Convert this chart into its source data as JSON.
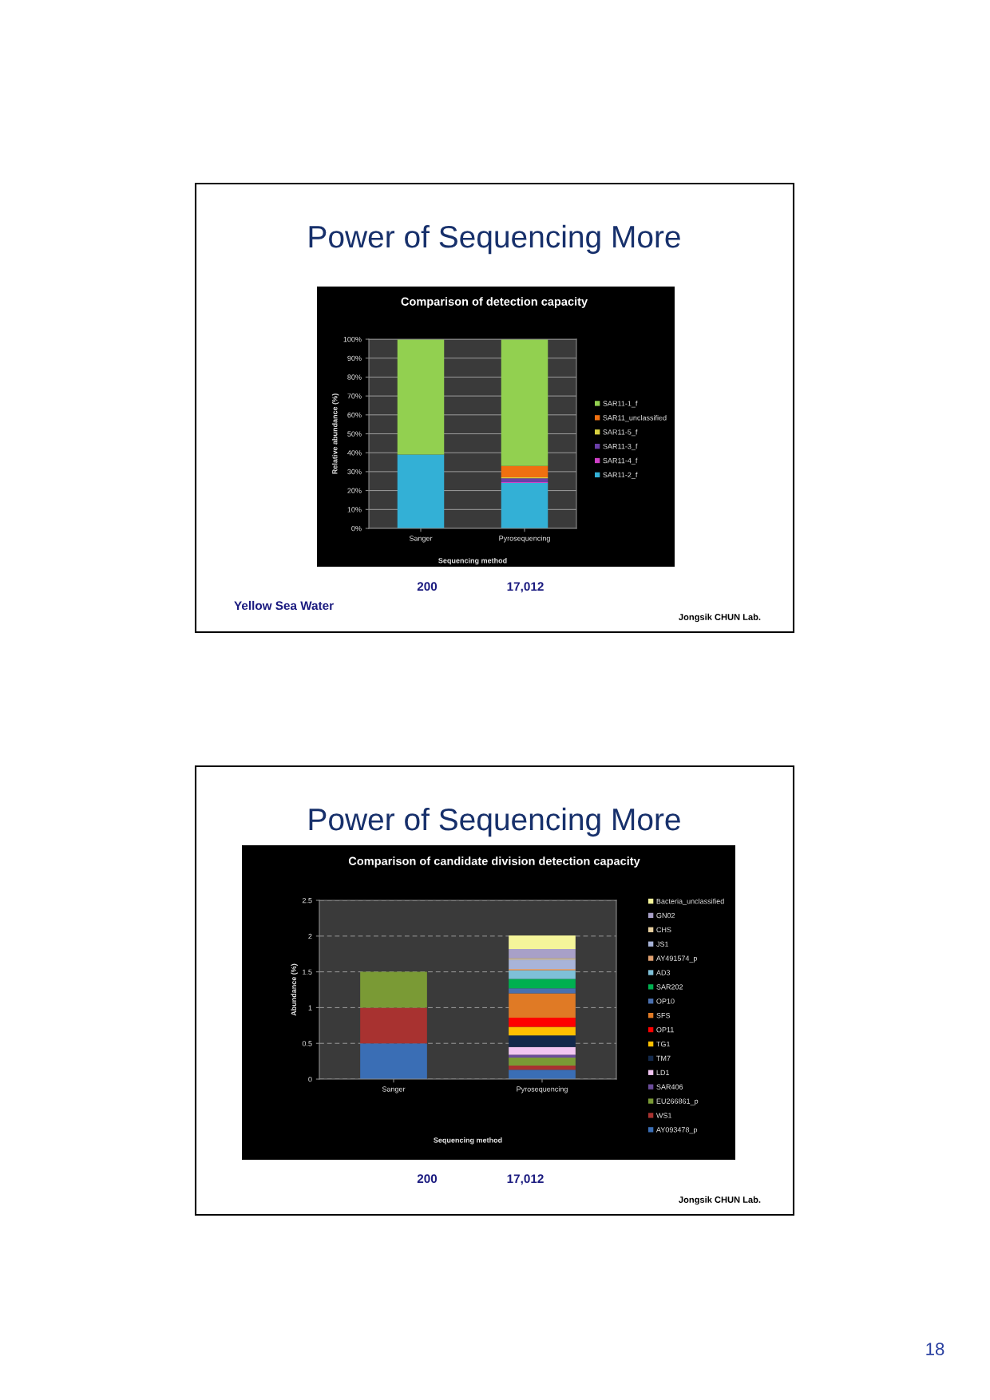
{
  "chart_data": [
    {
      "type": "bar",
      "title": "Comparison of detection capacity",
      "xlabel": "Sequencing method",
      "ylabel": "Relative abundance (%)",
      "categories": [
        "Sanger",
        "Pyrosequencing"
      ],
      "stacked": true,
      "series": [
        {
          "name": "SAR11-2_f",
          "color": "#33b0d6",
          "values": [
            39,
            24
          ]
        },
        {
          "name": "SAR11-4_f",
          "color": "#d040c8",
          "values": [
            null,
            0.5
          ]
        },
        {
          "name": "SAR11-3_f",
          "color": "#6a3fa8",
          "values": [
            null,
            2
          ]
        },
        {
          "name": "SAR11-5_f",
          "color": "#d8d040",
          "values": [
            null,
            0.5
          ]
        },
        {
          "name": "SAR11_unclassified",
          "color": "#f07010",
          "values": [
            null,
            6
          ]
        },
        {
          "name": "SAR11-1_f",
          "color": "#92d050",
          "values": [
            61,
            67
          ]
        }
      ],
      "ylim": [
        0,
        100
      ],
      "yticks": [
        {
          "value": 0,
          "label": "0%"
        },
        {
          "value": 10,
          "label": "10%"
        },
        {
          "value": 20,
          "label": "20%"
        },
        {
          "value": 30,
          "label": "30%"
        },
        {
          "value": 40,
          "label": "40%"
        },
        {
          "value": 50,
          "label": "50%"
        },
        {
          "value": 60,
          "label": "60%"
        },
        {
          "value": 70,
          "label": "70%"
        },
        {
          "value": 80,
          "label": "80%"
        },
        {
          "value": 90,
          "label": "90%"
        },
        {
          "value": 100,
          "label": "100%"
        }
      ],
      "grid": "y",
      "legend": "right",
      "annotations": [
        "Power of Sequencing More",
        "200",
        "17,012",
        "Yellow Sea Water",
        "Jongsik CHUN Lab."
      ]
    },
    {
      "type": "bar",
      "title": "Comparison of candidate division detection capacity",
      "xlabel": "Sequencing method",
      "ylabel": "Abundance (%)",
      "categories": [
        "Sanger",
        "Pyrosequencing"
      ],
      "stacked": true,
      "series": [
        {
          "name": "AY093478_p",
          "color": "#3a6eb5",
          "values": [
            0.5,
            0.13
          ]
        },
        {
          "name": "WS1",
          "color": "#a83230",
          "values": [
            0.5,
            0.06
          ]
        },
        {
          "name": "EU266861_p",
          "color": "#7a9a35",
          "values": [
            0.5,
            0.11
          ]
        },
        {
          "name": "SAR406",
          "color": "#6b4c9a",
          "values": [
            null,
            0.04
          ]
        },
        {
          "name": "LD1",
          "color": "#f2c6f2",
          "values": [
            null,
            0.11
          ]
        },
        {
          "name": "TM7",
          "color": "#13294b",
          "values": [
            null,
            0.16
          ]
        },
        {
          "name": "TG1",
          "color": "#ffc000",
          "values": [
            null,
            0.12
          ]
        },
        {
          "name": "OP11",
          "color": "#ff0000",
          "values": [
            null,
            0.13
          ]
        },
        {
          "name": "SFS",
          "color": "#e07a25",
          "values": [
            null,
            0.34
          ]
        },
        {
          "name": "OP10",
          "color": "#4a70b0",
          "values": [
            null,
            0.07
          ]
        },
        {
          "name": "SAR202",
          "color": "#00b050",
          "values": [
            null,
            0.13
          ]
        },
        {
          "name": "AD3",
          "color": "#7ec0d8",
          "values": [
            null,
            0.12
          ]
        },
        {
          "name": "AY491574_p",
          "color": "#e0a070",
          "values": [
            null,
            0.02
          ]
        },
        {
          "name": "JS1",
          "color": "#a8b4d8",
          "values": [
            null,
            0.13
          ]
        },
        {
          "name": "CHS",
          "color": "#e8d0a0",
          "values": [
            null,
            0.02
          ]
        },
        {
          "name": "GN02",
          "color": "#a8a0c8",
          "values": [
            null,
            0.13
          ]
        },
        {
          "name": "Bacteria_unclassified",
          "color": "#f5f59a",
          "values": [
            null,
            0.19
          ]
        }
      ],
      "ylim": [
        0,
        2.5
      ],
      "yticks": [
        0,
        0.5,
        1,
        1.5,
        2,
        2.5
      ],
      "grid": "y",
      "legend": "right",
      "annotations": [
        "Power of Sequencing More",
        "200",
        "17,012",
        "Jongsik CHUN Lab.",
        "18"
      ]
    }
  ]
}
